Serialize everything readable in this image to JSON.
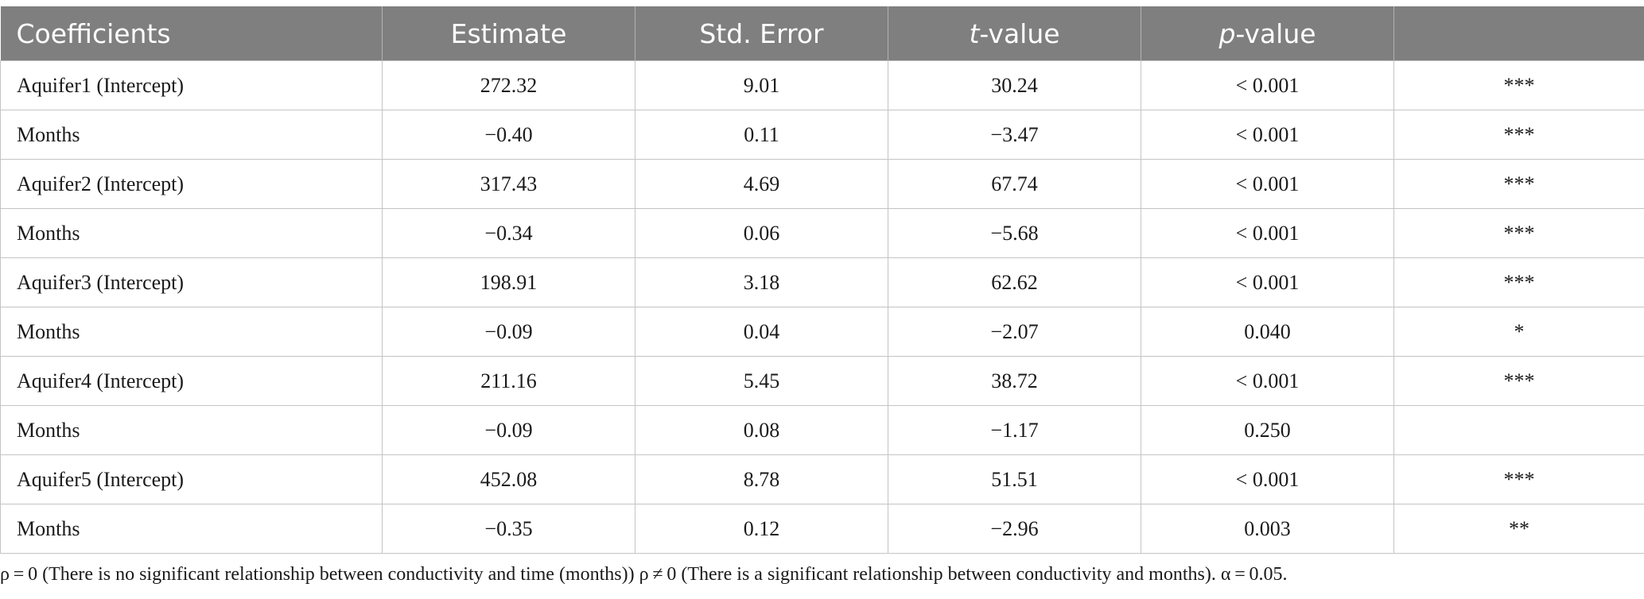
{
  "table": {
    "headers": [
      {
        "pre": "Coefficients",
        "ital": "",
        "post": ""
      },
      {
        "pre": "Estimate",
        "ital": "",
        "post": ""
      },
      {
        "pre": "Std. Error",
        "ital": "",
        "post": ""
      },
      {
        "pre": "",
        "ital": "t",
        "post": "-value"
      },
      {
        "pre": "",
        "ital": "p",
        "post": "-value"
      },
      {
        "pre": "",
        "ital": "",
        "post": ""
      }
    ],
    "rows": [
      [
        "Aquifer1 (Intercept)",
        "272.32",
        "9.01",
        "30.24",
        "< 0.001",
        "***"
      ],
      [
        "Months",
        "−0.40",
        "0.11",
        "−3.47",
        "< 0.001",
        "***"
      ],
      [
        "Aquifer2 (Intercept)",
        "317.43",
        "4.69",
        "67.74",
        "< 0.001",
        "***"
      ],
      [
        "Months",
        "−0.34",
        "0.06",
        "−5.68",
        "< 0.001",
        "***"
      ],
      [
        "Aquifer3 (Intercept)",
        "198.91",
        "3.18",
        "62.62",
        "< 0.001",
        "***"
      ],
      [
        "Months",
        "−0.09",
        "0.04",
        "−2.07",
        "0.040",
        "*"
      ],
      [
        "Aquifer4 (Intercept)",
        "211.16",
        "5.45",
        "38.72",
        "< 0.001",
        "***"
      ],
      [
        "Months",
        "−0.09",
        "0.08",
        "−1.17",
        "0.250",
        ""
      ],
      [
        "Aquifer5 (Intercept)",
        "452.08",
        "8.78",
        "51.51",
        "< 0.001",
        "***"
      ],
      [
        "Months",
        "−0.35",
        "0.12",
        "−2.96",
        "0.003",
        "**"
      ]
    ]
  },
  "footnote": "ρ = 0 (There is no significant relationship between conductivity and time (months)) ρ ≠ 0 (There is a significant relationship between conductivity and months). α = 0.05."
}
